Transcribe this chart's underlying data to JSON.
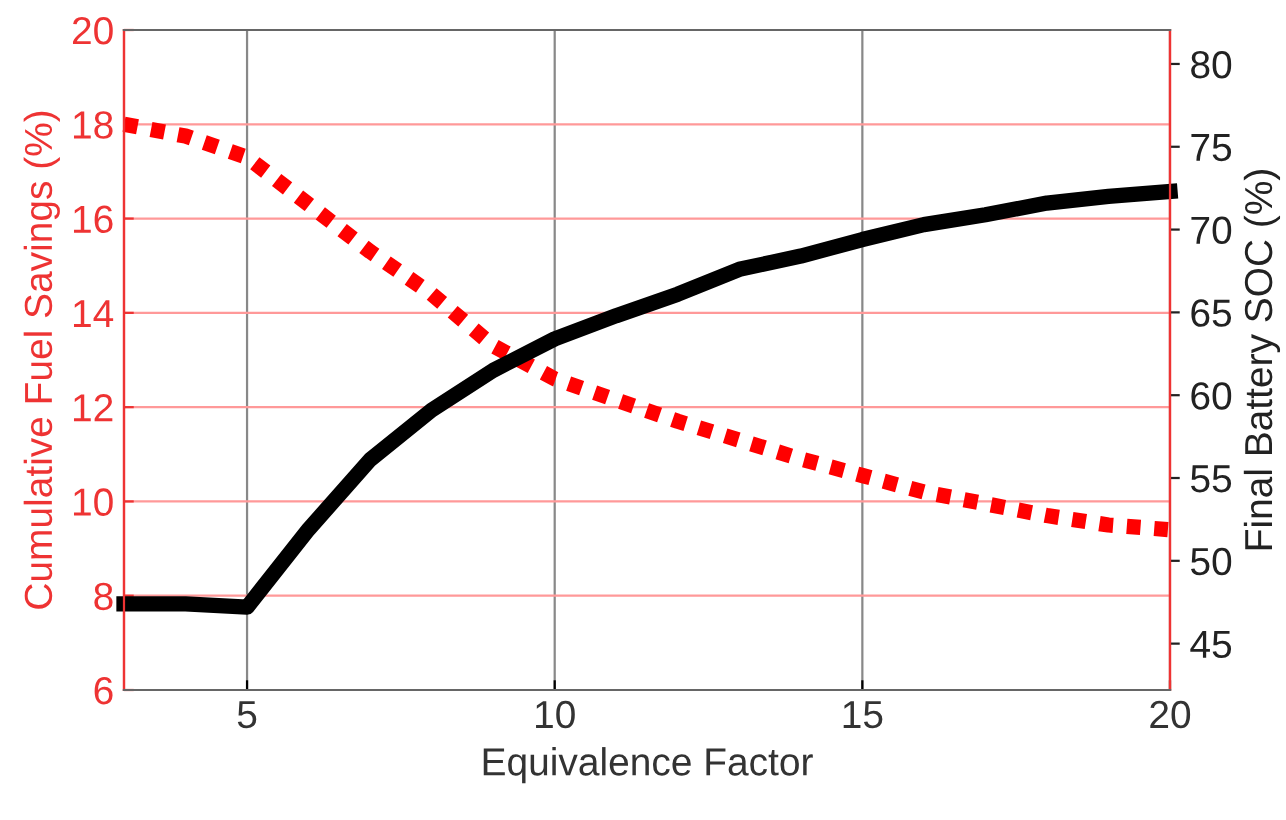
{
  "chart_data": {
    "type": "line",
    "xlabel": "Equivalence Factor",
    "ylabel": "Cumulative Fuel Savings (%)",
    "y2label": "Final Battery SOC (%)",
    "x": [
      3,
      4,
      5,
      6,
      7,
      8,
      9,
      10,
      11,
      12,
      13,
      14,
      15,
      16,
      17,
      18,
      19,
      20
    ],
    "series": [
      {
        "color": "#ff0000",
        "line_style": "dotted",
        "axis": "y",
        "values": [
          18.0,
          17.75,
          17.3,
          16.3,
          15.3,
          14.4,
          13.3,
          12.6,
          12.15,
          11.7,
          11.3,
          10.9,
          10.55,
          10.2,
          9.95,
          9.7,
          9.5,
          9.4
        ]
      },
      {
        "color": "#000000",
        "line_style": "solid",
        "axis": "y2",
        "values": [
          47.4,
          47.4,
          47.2,
          51.9,
          56.1,
          59.1,
          61.5,
          63.4,
          64.8,
          66.1,
          67.6,
          68.4,
          69.4,
          70.3,
          70.9,
          71.6,
          72.0,
          72.3
        ]
      }
    ],
    "xlim": [
      3,
      20
    ],
    "xticks": [
      5,
      10,
      15,
      20
    ],
    "ylim": [
      6,
      20
    ],
    "yticks": [
      6,
      8,
      10,
      12,
      14,
      16,
      18,
      20
    ],
    "y2lim": [
      42.2,
      82.05
    ],
    "y2ticks": [
      45,
      50,
      55,
      60,
      65,
      70,
      75,
      80
    ],
    "grid": true,
    "marker": "none"
  }
}
